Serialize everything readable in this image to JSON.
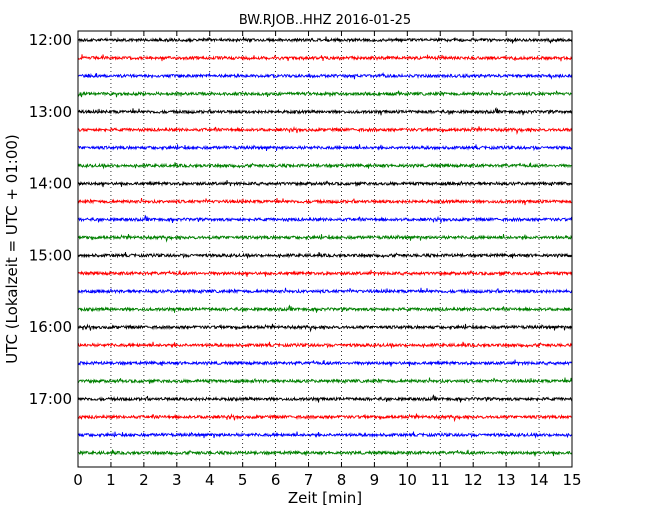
{
  "chart_data": {
    "type": "line",
    "subtype": "dayplot-helicorder",
    "title": "BW.RJOB..HHZ 2016-01-25",
    "xlabel": "Zeit  [min]",
    "ylabel": "UTC (Lokalzeit = UTC + 01:00)",
    "xlim": [
      0,
      15
    ],
    "x_ticks": [
      "0",
      "1",
      "2",
      "3",
      "4",
      "5",
      "6",
      "7",
      "8",
      "9",
      "10",
      "11",
      "12",
      "13",
      "14",
      "15"
    ],
    "y_tick_labels": [
      "12:00",
      "13:00",
      "14:00",
      "15:00",
      "16:00",
      "17:00"
    ],
    "trace_start_times": [
      "12:00",
      "12:15",
      "12:30",
      "12:45",
      "13:00",
      "13:15",
      "13:30",
      "13:45",
      "14:00",
      "14:15",
      "14:30",
      "14:45",
      "15:00",
      "15:15",
      "15:30",
      "15:45",
      "16:00",
      "16:15",
      "16:30",
      "16:45",
      "17:00",
      "17:15",
      "17:30",
      "17:45"
    ],
    "trace_colors": [
      "#000000",
      "#ff0000",
      "#0000ff",
      "#008000"
    ],
    "grid": "vertical-dotted",
    "legend": "none"
  }
}
